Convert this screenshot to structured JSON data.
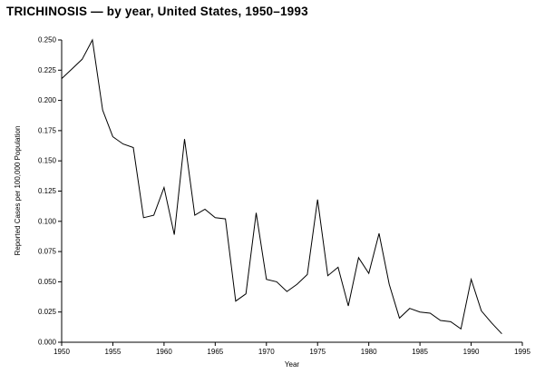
{
  "title": "TRICHINOSIS — by year, United States, 1950–1993",
  "colors": {
    "background": "#ffffff",
    "line": "#000000",
    "text": "#000000",
    "axis": "#000000"
  },
  "chart_data": {
    "type": "line",
    "title": "TRICHINOSIS — by year, United States, 1950–1993",
    "xlabel": "Year",
    "ylabel": "Reported Cases per 100,000 Population",
    "xlim": [
      1950,
      1995
    ],
    "ylim": [
      0.0,
      0.25
    ],
    "x_ticks": [
      1950,
      1955,
      1960,
      1965,
      1970,
      1975,
      1980,
      1985,
      1990,
      1995
    ],
    "y_ticks": [
      0.0,
      0.025,
      0.05,
      0.075,
      0.1,
      0.125,
      0.15,
      0.175,
      0.2,
      0.225,
      0.25
    ],
    "grid": false,
    "legend": "none",
    "x": [
      1950,
      1951,
      1952,
      1953,
      1954,
      1955,
      1956,
      1957,
      1958,
      1959,
      1960,
      1961,
      1962,
      1963,
      1964,
      1965,
      1966,
      1967,
      1968,
      1969,
      1970,
      1971,
      1972,
      1973,
      1974,
      1975,
      1976,
      1977,
      1978,
      1979,
      1980,
      1981,
      1982,
      1983,
      1984,
      1985,
      1986,
      1987,
      1988,
      1989,
      1990,
      1991,
      1992,
      1993
    ],
    "values": [
      0.218,
      0.226,
      0.234,
      0.25,
      0.192,
      0.17,
      0.164,
      0.161,
      0.103,
      0.105,
      0.128,
      0.089,
      0.168,
      0.105,
      0.11,
      0.103,
      0.102,
      0.034,
      0.04,
      0.107,
      0.052,
      0.05,
      0.042,
      0.048,
      0.056,
      0.118,
      0.055,
      0.062,
      0.03,
      0.07,
      0.057,
      0.09,
      0.048,
      0.02,
      0.028,
      0.025,
      0.024,
      0.018,
      0.017,
      0.011,
      0.052,
      0.026,
      0.016,
      0.007
    ]
  }
}
